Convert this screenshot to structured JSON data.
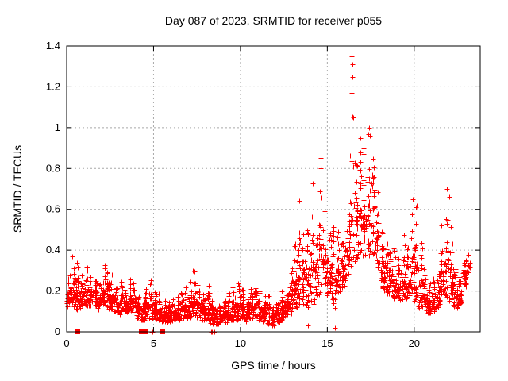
{
  "chart_data": {
    "type": "scatter",
    "title": "Day 087 of 2023, SRMTID for receiver p055",
    "xlabel": "GPS time / hours",
    "ylabel": "SRMTID / TECUs",
    "xlim": [
      0,
      23.8
    ],
    "ylim": [
      0,
      1.4
    ],
    "xticks": [
      0,
      5,
      10,
      15,
      20
    ],
    "xticklabels": [
      "0",
      "5",
      "10",
      "15",
      "20"
    ],
    "yticks": [
      0,
      0.2,
      0.4,
      0.6,
      0.8,
      1,
      1.2,
      1.4
    ],
    "yticklabels": [
      "0",
      "0.2",
      "0.4",
      "0.6",
      "0.8",
      "1",
      "1.2",
      "1.4"
    ],
    "grid": true,
    "legend": "none",
    "marker": "plus",
    "colors": {
      "marker": "#ff0000",
      "grid": "#a8a8a8",
      "border": "#000000",
      "text": "#000000",
      "background": "#ffffff"
    },
    "points_per_bin_default": 26,
    "envelope_bins": [
      [
        0.0,
        0.11,
        0.37
      ],
      [
        0.25,
        0.11,
        0.33
      ],
      [
        0.5,
        0.1,
        0.35
      ],
      [
        0.75,
        0.1,
        0.3
      ],
      [
        1.0,
        0.12,
        0.32
      ],
      [
        1.25,
        0.12,
        0.28
      ],
      [
        1.5,
        0.12,
        0.3
      ],
      [
        1.75,
        0.1,
        0.28
      ],
      [
        2.0,
        0.12,
        0.33
      ],
      [
        2.25,
        0.1,
        0.3
      ],
      [
        2.5,
        0.1,
        0.28
      ],
      [
        2.75,
        0.09,
        0.26
      ],
      [
        3.0,
        0.08,
        0.26
      ],
      [
        3.25,
        0.08,
        0.24
      ],
      [
        3.5,
        0.09,
        0.28
      ],
      [
        3.75,
        0.09,
        0.26
      ],
      [
        4.0,
        0.06,
        0.22
      ],
      [
        4.25,
        0.05,
        0.2
      ],
      [
        4.5,
        0.06,
        0.24
      ],
      [
        4.75,
        0.05,
        0.26
      ],
      [
        5.0,
        0.05,
        0.2
      ],
      [
        5.25,
        0.05,
        0.2
      ],
      [
        5.5,
        0.04,
        0.17
      ],
      [
        5.75,
        0.04,
        0.16
      ],
      [
        6.0,
        0.05,
        0.17
      ],
      [
        6.25,
        0.05,
        0.18
      ],
      [
        6.5,
        0.06,
        0.2
      ],
      [
        6.75,
        0.06,
        0.22
      ],
      [
        7.0,
        0.06,
        0.25
      ],
      [
        7.25,
        0.07,
        0.3
      ],
      [
        7.5,
        0.06,
        0.26
      ],
      [
        7.75,
        0.05,
        0.22
      ],
      [
        8.0,
        0.05,
        0.24
      ],
      [
        8.25,
        0.03,
        0.16
      ],
      [
        8.5,
        0.03,
        0.15
      ],
      [
        8.75,
        0.04,
        0.16
      ],
      [
        9.0,
        0.04,
        0.18
      ],
      [
        9.25,
        0.05,
        0.22
      ],
      [
        9.5,
        0.05,
        0.24
      ],
      [
        9.75,
        0.05,
        0.25
      ],
      [
        10.0,
        0.05,
        0.22
      ],
      [
        10.25,
        0.04,
        0.18
      ],
      [
        10.5,
        0.05,
        0.22
      ],
      [
        10.75,
        0.06,
        0.25
      ],
      [
        11.0,
        0.05,
        0.2
      ],
      [
        11.25,
        0.04,
        0.18
      ],
      [
        11.5,
        0.03,
        0.18
      ],
      [
        11.75,
        0.02,
        0.16
      ],
      [
        12.0,
        0.04,
        0.18
      ],
      [
        12.25,
        0.05,
        0.2
      ],
      [
        12.5,
        0.06,
        0.24
      ],
      [
        12.75,
        0.08,
        0.34
      ],
      [
        13.0,
        0.1,
        0.45
      ],
      [
        13.25,
        0.1,
        0.64
      ],
      [
        13.5,
        0.1,
        0.55
      ],
      [
        13.75,
        0.1,
        0.5
      ],
      [
        14.0,
        0.1,
        0.73
      ],
      [
        14.25,
        0.12,
        0.65
      ],
      [
        14.5,
        0.15,
        0.86
      ],
      [
        14.75,
        0.15,
        0.65
      ],
      [
        15.0,
        0.15,
        0.6
      ],
      [
        15.25,
        0.1,
        0.55
      ],
      [
        15.5,
        0.15,
        0.5
      ],
      [
        15.75,
        0.18,
        0.55
      ],
      [
        16.0,
        0.22,
        0.65
      ],
      [
        16.25,
        0.28,
        1.1
      ],
      [
        16.5,
        0.3,
        1.05
      ],
      [
        16.75,
        0.3,
        0.97
      ],
      [
        17.0,
        0.32,
        0.9
      ],
      [
        17.25,
        0.32,
        0.97
      ],
      [
        17.5,
        0.3,
        1.0
      ],
      [
        17.75,
        0.28,
        0.75
      ],
      [
        18.0,
        0.2,
        0.5
      ],
      [
        18.25,
        0.17,
        0.46
      ],
      [
        18.5,
        0.16,
        0.48
      ],
      [
        18.75,
        0.15,
        0.42
      ],
      [
        19.0,
        0.14,
        0.36
      ],
      [
        19.25,
        0.14,
        0.52
      ],
      [
        19.5,
        0.15,
        0.45
      ],
      [
        19.75,
        0.15,
        0.65
      ],
      [
        20.0,
        0.13,
        0.62
      ],
      [
        20.25,
        0.1,
        0.45
      ],
      [
        20.5,
        0.08,
        0.32
      ],
      [
        20.75,
        0.08,
        0.26
      ],
      [
        21.0,
        0.09,
        0.3
      ],
      [
        21.25,
        0.1,
        0.36
      ],
      [
        21.5,
        0.12,
        0.56
      ],
      [
        21.75,
        0.14,
        0.7
      ],
      [
        22.0,
        0.12,
        0.55
      ],
      [
        22.25,
        0.1,
        0.35
      ],
      [
        22.5,
        0.12,
        0.3
      ],
      [
        22.75,
        0.18,
        0.42
      ],
      [
        23.0,
        0.28,
        0.4,
        8
      ]
    ],
    "outlier_points": [
      [
        16.42,
        1.35
      ],
      [
        16.43,
        1.31
      ],
      [
        16.44,
        1.25
      ],
      [
        16.41,
        1.17
      ],
      [
        16.47,
        1.05
      ],
      [
        14.62,
        0.85
      ],
      [
        14.6,
        0.8
      ],
      [
        17.42,
        1.0
      ],
      [
        17.46,
        0.96
      ],
      [
        16.88,
        0.95
      ],
      [
        17.1,
        0.9
      ],
      [
        13.4,
        0.64
      ],
      [
        19.9,
        0.65
      ],
      [
        20.15,
        0.62
      ],
      [
        21.9,
        0.7
      ],
      [
        22.0,
        0.66
      ],
      [
        7.25,
        0.3
      ],
      [
        2.2,
        0.31
      ],
      [
        0.3,
        0.37
      ],
      [
        13.9,
        0.03
      ],
      [
        15.45,
        0.02
      ]
    ],
    "zero_squares_x": [
      0.65,
      4.31,
      4.57,
      5.51
    ],
    "zero_plus_x": [
      4.88,
      4.93,
      8.3,
      8.38,
      8.45,
      8.5
    ]
  }
}
